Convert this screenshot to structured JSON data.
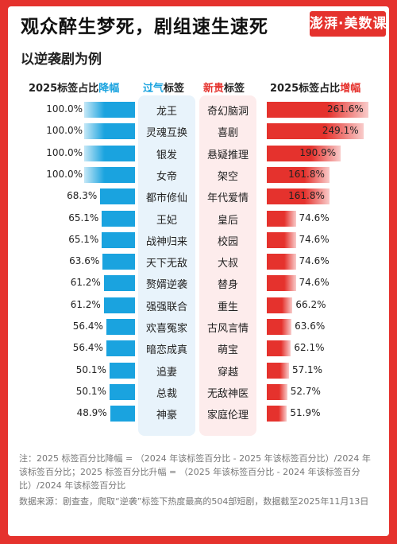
{
  "title": "观众醉生梦死，剧组速生速死",
  "logo": "澎湃·美数课",
  "subtitle": "以逆袭剧为例",
  "headers": {
    "left_pre": "2025标签占比",
    "left_em": "降幅",
    "mid1_em": "过气",
    "mid1_post": "标签",
    "mid2_em": "新贵",
    "mid2_post": "标签",
    "right_pre": "2025标签占比",
    "right_em": "增幅"
  },
  "colors": {
    "blue": "#1aa3df",
    "red": "#e5322d"
  },
  "chart_data": {
    "type": "bar",
    "title": "观众醉生梦死，剧组速生速死",
    "subtitle": "以逆袭剧为例",
    "declining": {
      "name": "过气标签",
      "categories": [
        "龙王",
        "灵魂互换",
        "银发",
        "女帝",
        "都市修仙",
        "王妃",
        "战神归来",
        "天下无敌",
        "赘婿逆袭",
        "强强联合",
        "欢喜冤家",
        "暗恋成真",
        "追妻",
        "总裁",
        "神豪"
      ],
      "values": [
        100.0,
        100.0,
        100.0,
        100.0,
        68.3,
        65.1,
        65.1,
        63.6,
        61.2,
        61.2,
        56.4,
        56.4,
        50.1,
        50.1,
        48.9
      ],
      "labels": [
        "100.0%",
        "100.0%",
        "100.0%",
        "100.0%",
        "68.3%",
        "65.1%",
        "65.1%",
        "63.6%",
        "61.2%",
        "61.2%",
        "56.4%",
        "56.4%",
        "50.1%",
        "50.1%",
        "48.9%"
      ]
    },
    "rising": {
      "name": "新贵标签",
      "categories": [
        "奇幻脑洞",
        "喜剧",
        "悬疑推理",
        "架空",
        "年代爱情",
        "皇后",
        "校园",
        "大叔",
        "替身",
        "重生",
        "古风言情",
        "萌宝",
        "穿越",
        "无敌神医",
        "家庭伦理"
      ],
      "values": [
        261.6,
        249.1,
        190.9,
        161.8,
        161.8,
        74.6,
        74.6,
        74.6,
        74.6,
        66.2,
        63.6,
        62.1,
        57.1,
        52.7,
        51.9
      ],
      "labels": [
        "261.6%",
        "249.1%",
        "190.9%",
        "161.8%",
        "161.8%",
        "74.6%",
        "74.6%",
        "74.6%",
        "74.6%",
        "66.2%",
        "63.6%",
        "62.1%",
        "57.1%",
        "52.7%",
        "51.9%"
      ]
    }
  },
  "note": "注：2025 标签百分比降幅 = （2024 年该标签百分比 - 2025 年该标签百分比）/2024 年该标签百分比；2025 标签百分比升幅 = （2025 年该标签百分比 - 2024 年该标签百分比）/2024 年该标签百分比",
  "source": "数据来源：剧查查，爬取“逆袭”标签下热度最高的504部短剧，数据截至2025年11月13日"
}
